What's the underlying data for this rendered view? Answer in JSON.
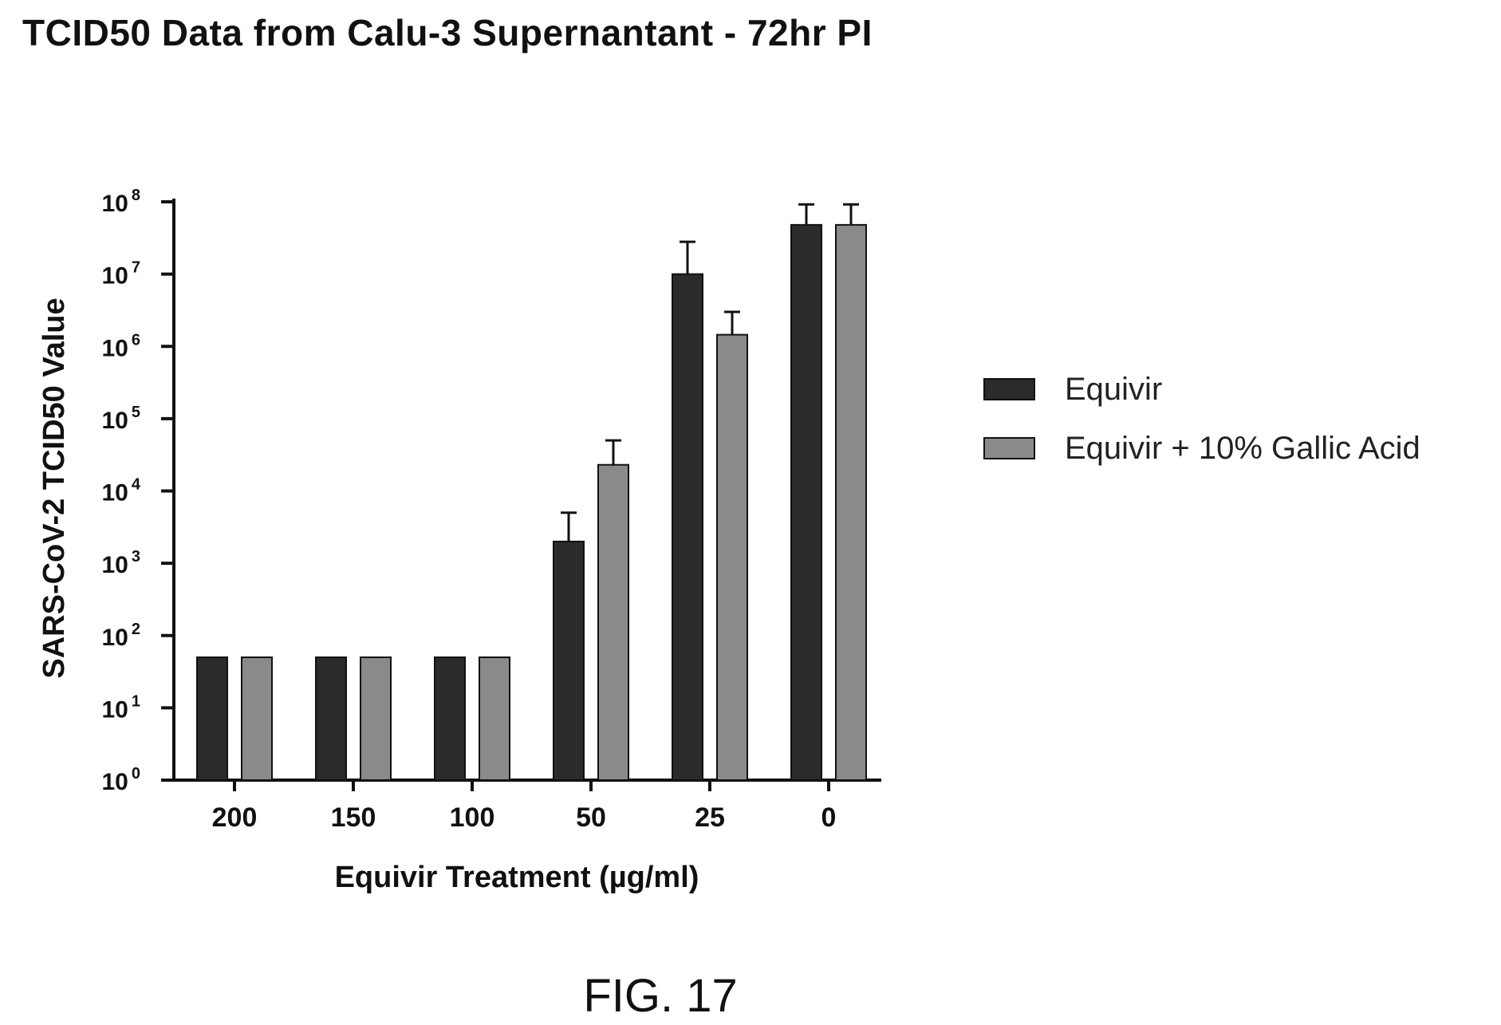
{
  "figure_label": "FIG. 17",
  "chart_data": {
    "type": "bar",
    "title": "TCID50 Data from Calu-3 Supernantant - 72hr PI",
    "xlabel": "Equivir  Treatment (µg/ml)",
    "ylabel": "SARS-CoV-2 TCID50 Value",
    "yscale": "log",
    "ylim": [
      1,
      100000000
    ],
    "yticks": [
      {
        "base": "10",
        "exp": "0"
      },
      {
        "base": "10",
        "exp": "1"
      },
      {
        "base": "10",
        "exp": "2"
      },
      {
        "base": "10",
        "exp": "3"
      },
      {
        "base": "10",
        "exp": "4"
      },
      {
        "base": "10",
        "exp": "5"
      },
      {
        "base": "10",
        "exp": "6"
      },
      {
        "base": "10",
        "exp": "7"
      },
      {
        "base": "10",
        "exp": "8"
      }
    ],
    "categories": [
      "200",
      "150",
      "100",
      "50",
      "25",
      "0"
    ],
    "legend_position": "right",
    "series": [
      {
        "name": "Equivir",
        "color": "#2b2b2b",
        "values": [
          50,
          50,
          50,
          2000,
          10000000,
          48000000
        ],
        "error_upper": [
          null,
          null,
          null,
          5000,
          28000000,
          92000000
        ]
      },
      {
        "name": "Equivir + 10% Gallic Acid",
        "color": "#8a8a8a",
        "values": [
          50,
          50,
          50,
          23000,
          1450000,
          48000000
        ],
        "error_upper": [
          null,
          null,
          null,
          50000,
          3000000,
          92000000
        ]
      }
    ]
  }
}
